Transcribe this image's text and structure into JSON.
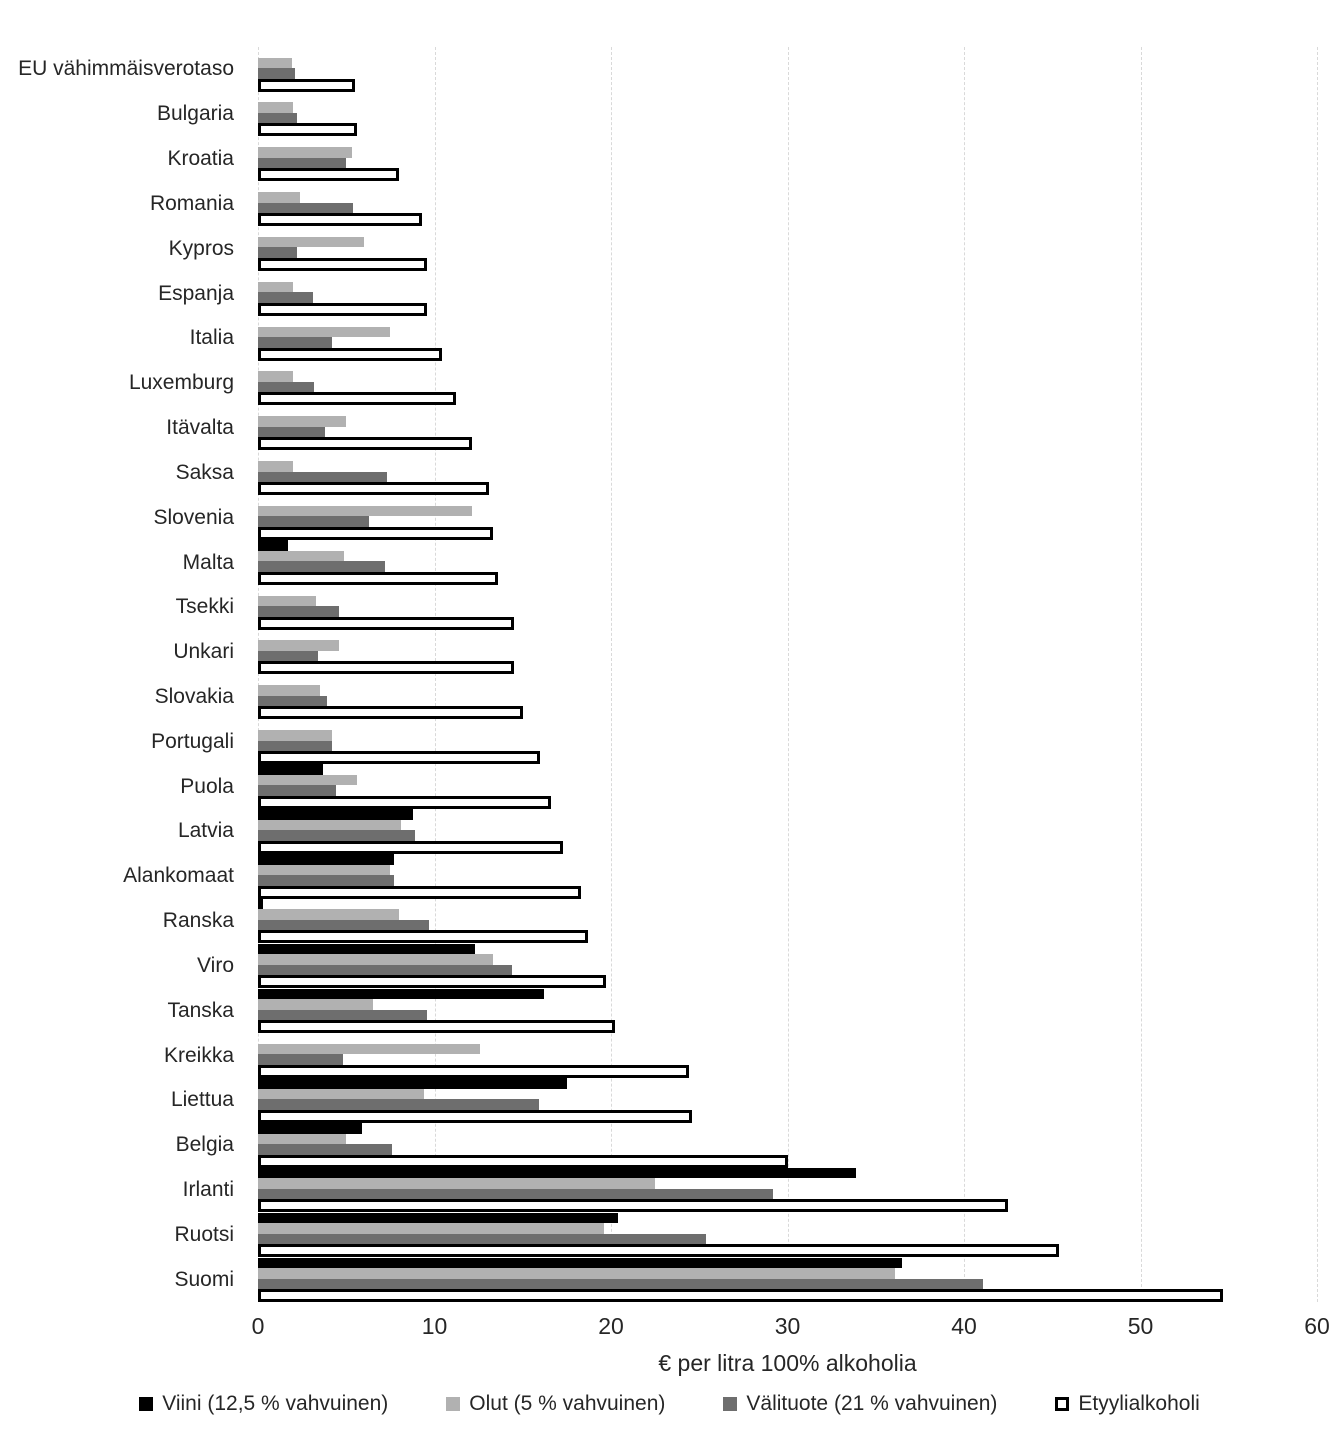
{
  "chart_data": {
    "type": "bar",
    "orientation": "horizontal",
    "xlabel": "€ per litra 100% alkoholia",
    "xlim": [
      0,
      60
    ],
    "xticks": [
      0,
      10,
      20,
      30,
      40,
      50,
      60
    ],
    "grid": true,
    "legend_position": "bottom",
    "categories": [
      "EU vähimmäisverotaso",
      "Bulgaria",
      "Kroatia",
      "Romania",
      "Kypros",
      "Espanja",
      "Italia",
      "Luxemburg",
      "Itävalta",
      "Saksa",
      "Slovenia",
      "Malta",
      "Tsekki",
      "Unkari",
      "Slovakia",
      "Portugali",
      "Puola",
      "Latvia",
      "Alankomaat",
      "Ranska",
      "Viro",
      "Tanska",
      "Kreikka",
      "Liettua",
      "Belgia",
      "Irlanti",
      "Ruotsi",
      "Suomi"
    ],
    "series": [
      {
        "name": "Viini (12,5 % vahvuinen)",
        "color": "#000000",
        "values": [
          0,
          0,
          0,
          0,
          0,
          0,
          0,
          0,
          0,
          0,
          0,
          1.7,
          0,
          0,
          0,
          0,
          3.7,
          8.8,
          7.7,
          0.3,
          12.3,
          16.2,
          0,
          17.5,
          5.9,
          33.9,
          20.4,
          36.5
        ]
      },
      {
        "name": "Olut (5 % vahvuinen)",
        "color": "#b1b1b1",
        "values": [
          1.9,
          2.0,
          5.3,
          2.4,
          6.0,
          2.0,
          7.5,
          2.0,
          5.0,
          2.0,
          12.1,
          4.9,
          3.3,
          4.6,
          3.5,
          4.2,
          5.6,
          8.1,
          7.5,
          8.0,
          13.3,
          6.5,
          12.6,
          9.4,
          5.0,
          22.5,
          19.6,
          36.1
        ]
      },
      {
        "name": "Välituote (21 % vahvuinen)",
        "color": "#6e6e6e",
        "values": [
          2.1,
          2.2,
          5.0,
          5.4,
          2.2,
          3.1,
          4.2,
          3.2,
          3.8,
          7.3,
          6.3,
          7.2,
          4.6,
          3.4,
          3.9,
          4.2,
          4.4,
          8.9,
          7.7,
          9.7,
          14.4,
          9.6,
          4.8,
          15.9,
          7.6,
          29.2,
          25.4,
          41.1
        ]
      },
      {
        "name": "Etyylialkoholi",
        "color": "#ffffff",
        "border_color": "#000000",
        "values": [
          5.5,
          5.6,
          8.0,
          9.3,
          9.6,
          9.6,
          10.4,
          11.2,
          12.1,
          13.1,
          13.3,
          13.6,
          14.5,
          14.5,
          15.0,
          16.0,
          16.6,
          17.3,
          18.3,
          18.7,
          19.7,
          20.2,
          24.4,
          24.6,
          30.0,
          42.5,
          45.4,
          54.7
        ]
      }
    ],
    "colors": {
      "text": "#262626",
      "gridline": "#d9d9d9",
      "background": "#ffffff"
    }
  }
}
